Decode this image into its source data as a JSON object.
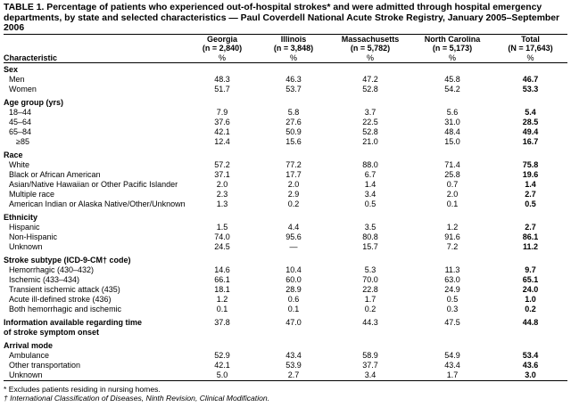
{
  "title": "TABLE 1. Percentage of patients who experienced out-of-hospital strokes* and were admitted through hospital emergency departments, by state and selected characteristics — Paul Coverdell National Acute Stroke Registry, January 2005–September 2006",
  "table": {
    "header": {
      "characteristic": "Characteristic",
      "columns": [
        {
          "name": "Georgia",
          "n": "(n = 2,840)",
          "unit": "%"
        },
        {
          "name": "Illinois",
          "n": "(n = 3,848)",
          "unit": "%"
        },
        {
          "name": "Massachusetts",
          "n": "(n = 5,782)",
          "unit": "%"
        },
        {
          "name": "North Carolina",
          "n": "(n = 5,173)",
          "unit": "%"
        },
        {
          "name": "Total",
          "n": "(N = 17,643)",
          "unit": "%"
        }
      ]
    },
    "sections": [
      {
        "label": "Sex",
        "rows": [
          {
            "label": "Men",
            "values": [
              "48.3",
              "46.3",
              "47.2",
              "45.8",
              "46.7"
            ]
          },
          {
            "label": "Women",
            "values": [
              "51.7",
              "53.7",
              "52.8",
              "54.2",
              "53.3"
            ]
          }
        ]
      },
      {
        "label": "Age group (yrs)",
        "rows": [
          {
            "label": "18–44",
            "values": [
              "7.9",
              "5.8",
              "3.7",
              "5.6",
              "5.4"
            ]
          },
          {
            "label": "45–64",
            "values": [
              "37.6",
              "27.6",
              "22.5",
              "31.0",
              "28.5"
            ]
          },
          {
            "label": "65–84",
            "values": [
              "42.1",
              "50.9",
              "52.8",
              "48.4",
              "49.4"
            ]
          },
          {
            "label": "≥85",
            "values": [
              "12.4",
              "15.6",
              "21.0",
              "15.0",
              "16.7"
            ]
          }
        ]
      },
      {
        "label": "Race",
        "rows": [
          {
            "label": "White",
            "values": [
              "57.2",
              "77.2",
              "88.0",
              "71.4",
              "75.8"
            ]
          },
          {
            "label": "Black or African American",
            "values": [
              "37.1",
              "17.7",
              "6.7",
              "25.8",
              "19.6"
            ]
          },
          {
            "label": "Asian/Native Hawaiian or Other Pacific Islander",
            "values": [
              "2.0",
              "2.0",
              "1.4",
              "0.7",
              "1.4"
            ]
          },
          {
            "label": "Multiple race",
            "values": [
              "2.3",
              "2.9",
              "3.4",
              "2.0",
              "2.7"
            ]
          },
          {
            "label": "American Indian or Alaska Native/Other/Unknown",
            "values": [
              "1.3",
              "0.2",
              "0.5",
              "0.1",
              "0.5"
            ]
          }
        ]
      },
      {
        "label": "Ethnicity",
        "rows": [
          {
            "label": "Hispanic",
            "values": [
              "1.5",
              "4.4",
              "3.5",
              "1.2",
              "2.7"
            ]
          },
          {
            "label": "Non-Hispanic",
            "values": [
              "74.0",
              "95.6",
              "80.8",
              "91.6",
              "86.1"
            ]
          },
          {
            "label": "Unknown",
            "values": [
              "24.5",
              "—",
              "15.7",
              "7.2",
              "11.2"
            ]
          }
        ]
      },
      {
        "label": "Stroke subtype (ICD-9-CM† code)",
        "rows": [
          {
            "label": "Hemorrhagic (430–432)",
            "values": [
              "14.6",
              "10.4",
              "5.3",
              "11.3",
              "9.7"
            ]
          },
          {
            "label": "Ischemic (433–434)",
            "values": [
              "66.1",
              "60.0",
              "70.0",
              "63.0",
              "65.1"
            ]
          },
          {
            "label": "Transient ischemic attack (435)",
            "values": [
              "18.1",
              "28.9",
              "22.8",
              "24.9",
              "24.0"
            ]
          },
          {
            "label": "Acute ill-defined stroke (436)",
            "values": [
              "1.2",
              "0.6",
              "1.7",
              "0.5",
              "1.0"
            ]
          },
          {
            "label": "Both hemorrhagic and ischemic",
            "values": [
              "0.1",
              "0.1",
              "0.2",
              "0.3",
              "0.2"
            ]
          }
        ]
      },
      {
        "label": "Information available regarding time of stroke symptom onset",
        "values": [
          "37.8",
          "47.0",
          "44.3",
          "47.5",
          "44.8"
        ],
        "rows": []
      },
      {
        "label": "Arrival mode",
        "rows": [
          {
            "label": "Ambulance",
            "values": [
              "52.9",
              "43.4",
              "58.9",
              "54.9",
              "53.4"
            ]
          },
          {
            "label": "Other transportation",
            "values": [
              "42.1",
              "53.9",
              "37.7",
              "43.4",
              "43.6"
            ]
          },
          {
            "label": "Unknown",
            "values": [
              "5.0",
              "2.7",
              "3.4",
              "1.7",
              "3.0"
            ]
          }
        ]
      }
    ]
  },
  "footnotes": [
    "* Excludes patients residing in nursing homes.",
    "† International Classification of Diseases, Ninth Revision, Clinical Modification."
  ]
}
